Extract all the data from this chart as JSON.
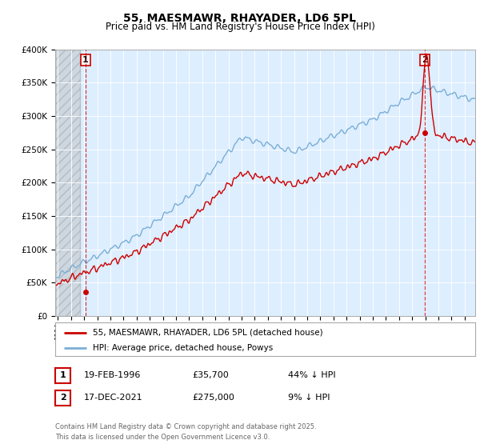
{
  "title": "55, MAESMAWR, RHAYADER, LD6 5PL",
  "subtitle": "Price paid vs. HM Land Registry's House Price Index (HPI)",
  "ylim": [
    0,
    400000
  ],
  "xlim_start": 1993.8,
  "xlim_end": 2025.8,
  "background_color": "#ffffff",
  "plot_bg_color": "#ddeeff",
  "hatch_end_year": 1995.7,
  "point1_year": 1996.12,
  "point1_price": 35700,
  "point2_year": 2021.96,
  "point2_price": 275000,
  "legend_line1": "55, MAESMAWR, RHAYADER, LD6 5PL (detached house)",
  "legend_line2": "HPI: Average price, detached house, Powys",
  "footer": "Contains HM Land Registry data © Crown copyright and database right 2025.\nThis data is licensed under the Open Government Licence v3.0.",
  "red_color": "#cc0000",
  "blue_color": "#7aaed6",
  "table1_date": "19-FEB-1996",
  "table1_price": "£35,700",
  "table1_pct": "44% ↓ HPI",
  "table2_date": "17-DEC-2021",
  "table2_price": "£275,000",
  "table2_pct": "9% ↓ HPI"
}
